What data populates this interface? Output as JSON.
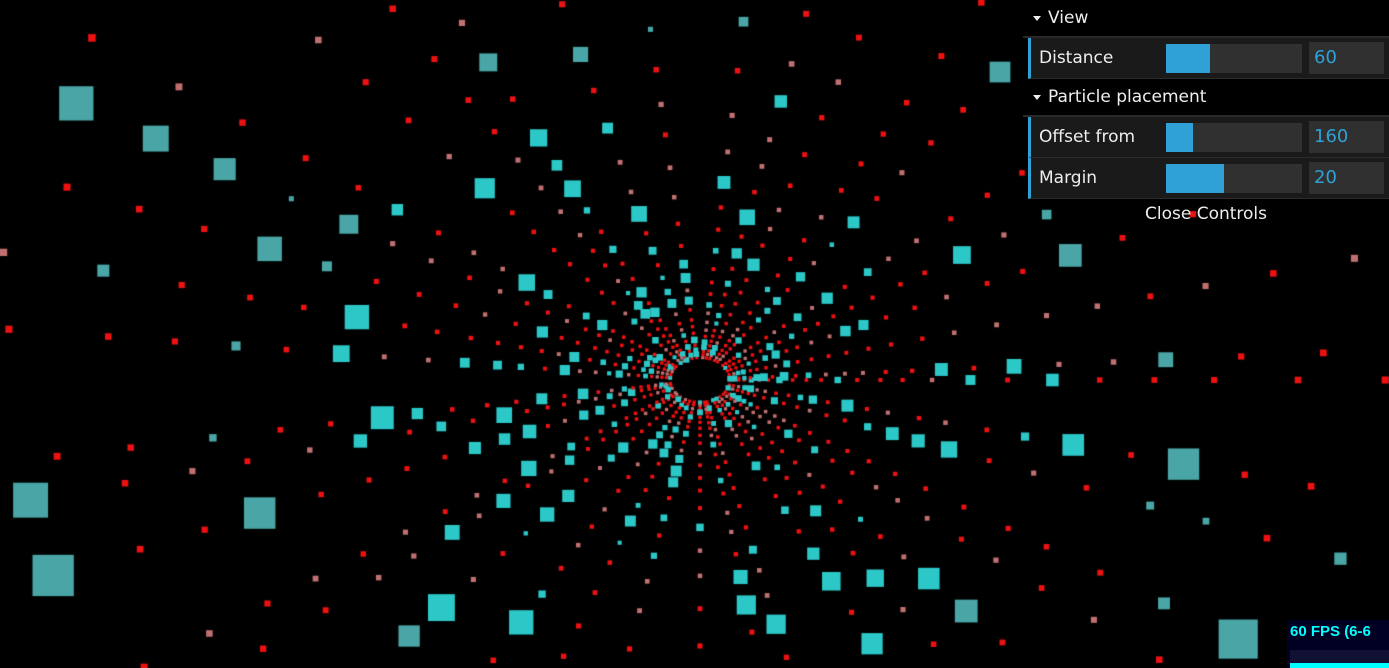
{
  "controls": {
    "folders": [
      {
        "title": "View",
        "items": [
          {
            "label": "Distance",
            "value": "60",
            "fill": 0.32
          }
        ]
      },
      {
        "title": "Particle placement",
        "items": [
          {
            "label": "Offset from",
            "value": "160",
            "fill": 0.2
          },
          {
            "label": "Margin",
            "value": "20",
            "fill": 0.43
          }
        ]
      }
    ],
    "close_label": "Close Controls",
    "accent": "#2fa1d6"
  },
  "stats": {
    "fps_text": "60 FPS (6-6"
  },
  "scene": {
    "background": "#000000",
    "particle_colors": [
      "#ff0000",
      "#33cccc"
    ]
  }
}
